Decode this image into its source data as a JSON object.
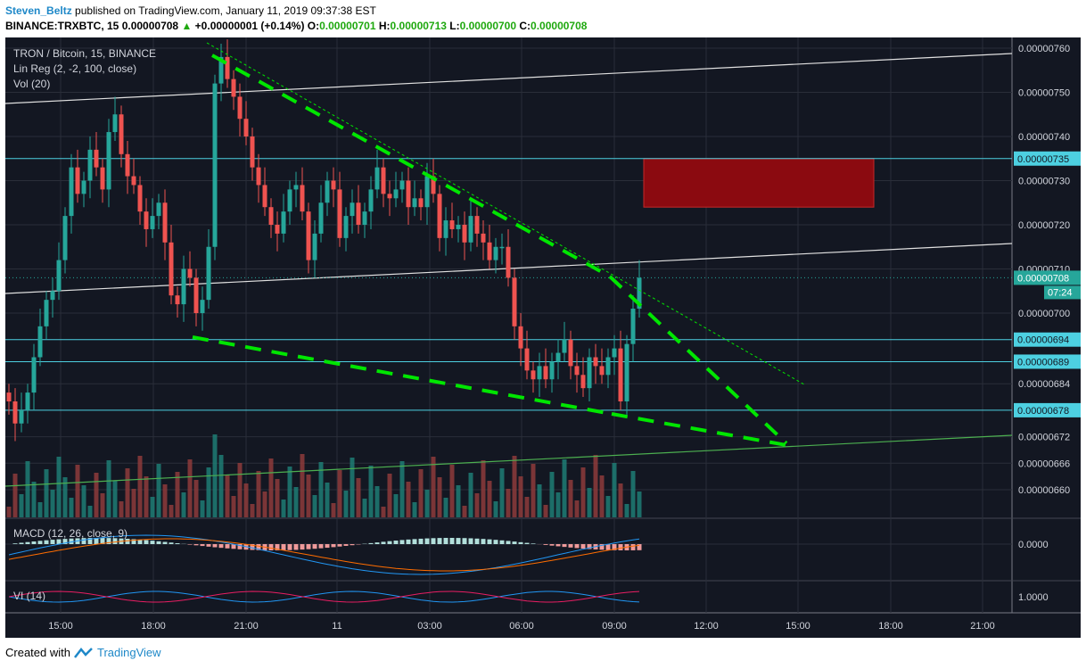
{
  "header": {
    "author": "Steven_Beltz",
    "published": "published on TradingView.com, January 11, 2019 09:37:38 EST",
    "symbol": "BINANCE:TRXBTC, 15",
    "last": "0.00000708",
    "change_arrow": "▲",
    "change": "+0.00000001 (+0.14%)",
    "o_label": "O:",
    "o": "0.00000701",
    "h_label": "H:",
    "h": "0.00000713",
    "l_label": "L:",
    "l": "0.00000700",
    "c_label": "C:",
    "c": "0.00000708"
  },
  "legend": {
    "title": "TRON / Bitcoin, 15, BINANCE",
    "linreg": "Lin Reg (2, -2, 100, close)",
    "vol": "Vol (20)",
    "macd": "MACD (12, 26, close, 9)",
    "vi": "VI (14)"
  },
  "footer": {
    "created": "Created with",
    "brand": "TradingView"
  },
  "colors": {
    "up": "#26a69a",
    "down": "#ef5350",
    "background": "#131722",
    "level": "#4dd0e1",
    "trend": "#00e600",
    "zone": "#8b0a10"
  },
  "chart_data": {
    "type": "candlestick",
    "title": "TRON / Bitcoin, 15, BINANCE",
    "x_ticks": [
      "15:00",
      "18:00",
      "21:00",
      "11",
      "03:00",
      "06:00",
      "09:00",
      "12:00",
      "15:00",
      "18:00",
      "21:00"
    ],
    "y_ticks": [
      "0.00000760",
      "0.00000750",
      "0.00000740",
      "0.00000730",
      "0.00000720",
      "0.00000710",
      "0.00000700",
      "0.00000684",
      "0.00000672",
      "0.00000666",
      "0.00000660"
    ],
    "y_ticks_values": [
      760,
      750,
      740,
      730,
      720,
      710,
      700,
      684,
      672,
      666,
      660
    ],
    "ylim": [
      657,
      763
    ],
    "y_unit_scale": 1e-09,
    "price_levels": [
      {
        "value": 735,
        "label": "0.00000735"
      },
      {
        "value": 694,
        "label": "0.00000694"
      },
      {
        "value": 689,
        "label": "0.00000689"
      },
      {
        "value": 678,
        "label": "0.00000678"
      }
    ],
    "last_price": {
      "value": 708,
      "label": "0.00000708",
      "countdown": "07:24"
    },
    "resistance_zone": {
      "from": 724,
      "to": 735
    },
    "candles_close": [
      680,
      675,
      678,
      682,
      690,
      697,
      703,
      705,
      712,
      722,
      733,
      727,
      730,
      737,
      733,
      728,
      741,
      745,
      736,
      731,
      729,
      723,
      719,
      722,
      725,
      716,
      704,
      702,
      710,
      708,
      700,
      703,
      715,
      752,
      758,
      753,
      749,
      744,
      740,
      733,
      729,
      724,
      720,
      718,
      723,
      728,
      729,
      723,
      712,
      718,
      725,
      730,
      728,
      717,
      722,
      725,
      720,
      723,
      728,
      733,
      727,
      726,
      728,
      730,
      724,
      726,
      724,
      731,
      727,
      717,
      721,
      719,
      720,
      716,
      722,
      718,
      716,
      712,
      715,
      715,
      708,
      697,
      692,
      687,
      685,
      688,
      685,
      689,
      691,
      694,
      688,
      686,
      683,
      690,
      688,
      686,
      690,
      692,
      680,
      693,
      701,
      708
    ],
    "volume_scale_note": "volume shown as bars under price",
    "macd": {
      "zero_label": "0.0000"
    },
    "vi": {
      "one_label": "1.0000"
    }
  }
}
